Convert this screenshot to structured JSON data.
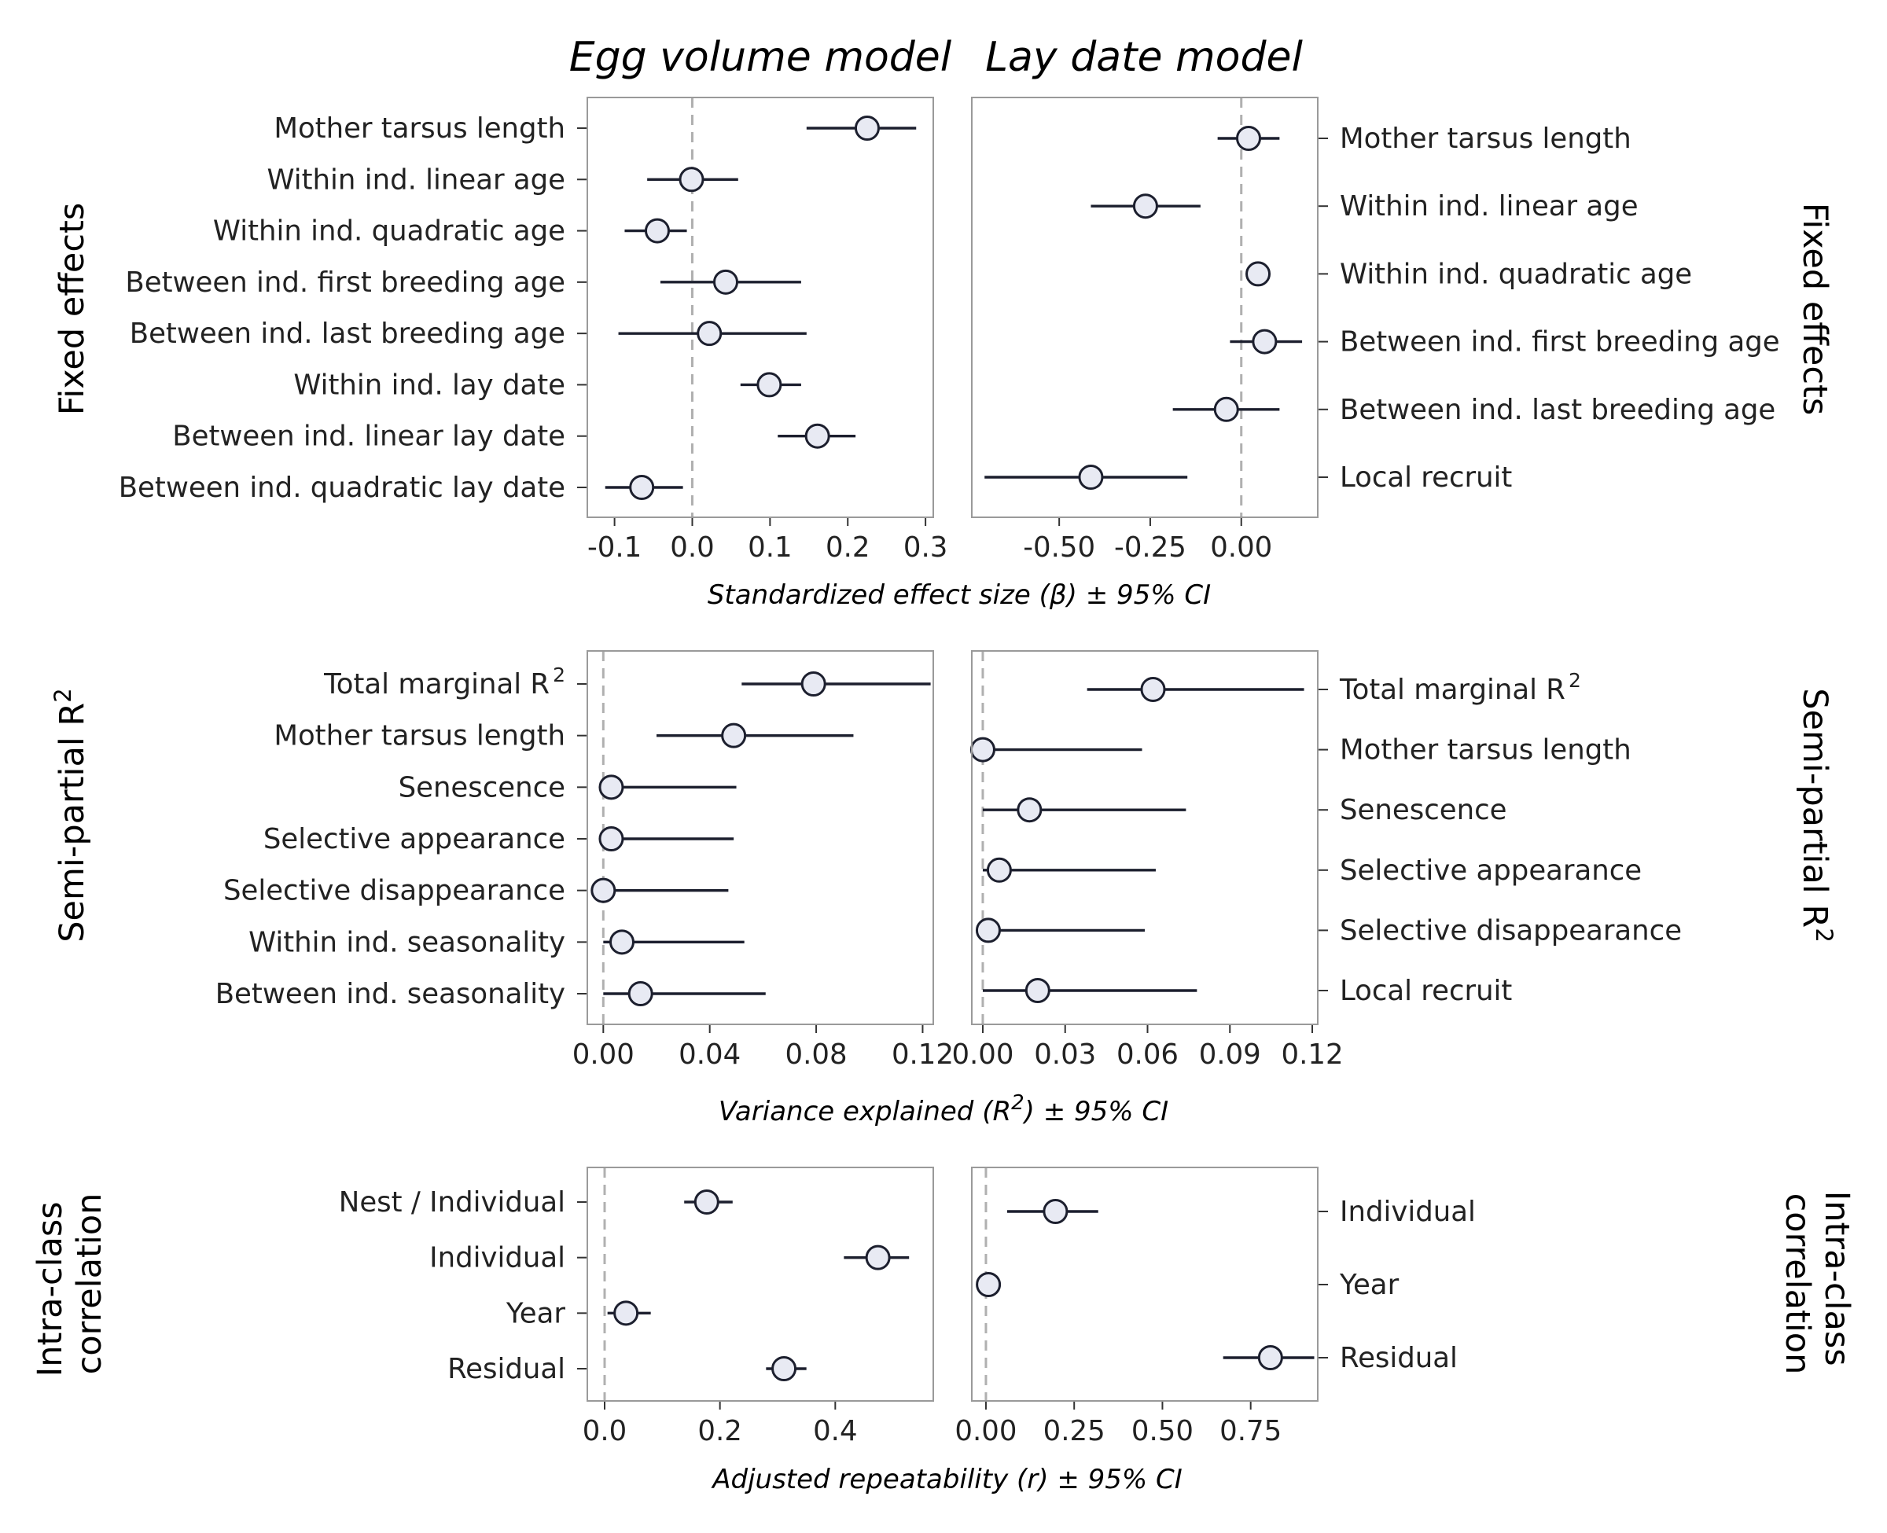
{
  "col_titles": [
    "Egg volume model",
    "Lay date model"
  ],
  "chart_data": [
    {
      "type": "scatter",
      "name": "fixed-effects-egg-volume",
      "row_title": "Fixed effects",
      "column": "Egg volume model",
      "xlabel": "Standardized effect size (β) ± 95% CI",
      "xlim": [
        -0.135,
        0.31
      ],
      "xticks": [
        -0.1,
        0.0,
        0.1,
        0.2,
        0.3
      ],
      "xtick_labels": [
        "-0.1",
        "0.0",
        "0.1",
        "0.2",
        "0.3"
      ],
      "reference_line": 0,
      "labels_side": "left",
      "categories": [
        "Mother tarsus length",
        "Within ind. linear age",
        "Within ind. quadratic age",
        "Between ind. first breeding age",
        "Between ind. last breeding age",
        "Within ind. lay date",
        "Between ind. linear lay date",
        "Between ind. quadratic lay date"
      ],
      "estimates": [
        0.225,
        -0.001,
        -0.045,
        0.043,
        0.022,
        0.099,
        0.161,
        -0.065
      ],
      "lower": [
        0.147,
        -0.058,
        -0.087,
        -0.041,
        -0.095,
        0.062,
        0.11,
        -0.112
      ],
      "upper": [
        0.288,
        0.059,
        -0.007,
        0.14,
        0.147,
        0.14,
        0.21,
        -0.012
      ]
    },
    {
      "type": "scatter",
      "name": "fixed-effects-lay-date",
      "row_title": "Fixed effects",
      "column": "Lay date model",
      "xlabel": "Standardized effect size (β) ± 95% CI",
      "xlim": [
        -0.74,
        0.21
      ],
      "xticks": [
        -0.5,
        -0.25,
        0.0
      ],
      "xtick_labels": [
        "-0.50",
        "-0.25",
        "0.00"
      ],
      "reference_line": 0,
      "labels_side": "right",
      "categories": [
        "Mother tarsus length",
        "Within ind. linear age",
        "Within ind. quadratic age",
        "Between ind. first breeding age",
        "Between ind. last breeding age",
        "Local recruit"
      ],
      "estimates": [
        0.02,
        -0.263,
        0.046,
        0.064,
        -0.041,
        -0.413
      ],
      "lower": [
        -0.065,
        -0.413,
        0.046,
        -0.031,
        -0.188,
        -0.705
      ],
      "upper": [
        0.105,
        -0.112,
        0.046,
        0.167,
        0.105,
        -0.148
      ]
    },
    {
      "type": "scatter",
      "name": "semi-partial-r2-egg-volume",
      "row_title": "Semi-partial R",
      "row_title_sup": "2",
      "column": "Egg volume model",
      "xlabel": "Variance explained (R",
      "xlabel_sup": "2",
      "xlabel_tail": ") ± 95% CI",
      "xlim": [
        -0.006,
        0.124
      ],
      "xticks": [
        0.0,
        0.04,
        0.08,
        0.12
      ],
      "xtick_labels": [
        "0.00",
        "0.04",
        "0.08",
        "0.12"
      ],
      "reference_line": 0,
      "labels_side": "left",
      "categories": [
        "Total marginal R",
        "Mother tarsus length",
        "Senescence",
        "Selective appearance",
        "Selective disappearance",
        "Within ind. seasonality",
        "Between ind. seasonality"
      ],
      "category_sups": [
        "2",
        "",
        "",
        "",
        "",
        "",
        ""
      ],
      "estimates": [
        0.079,
        0.049,
        0.003,
        0.003,
        0.0,
        0.007,
        0.014
      ],
      "lower": [
        0.052,
        0.02,
        0.003,
        0.003,
        0.0,
        0.0,
        0.0
      ],
      "upper": [
        0.123,
        0.094,
        0.05,
        0.049,
        0.047,
        0.053,
        0.061
      ]
    },
    {
      "type": "scatter",
      "name": "semi-partial-r2-lay-date",
      "row_title": "Semi-partial R",
      "row_title_sup": "2",
      "column": "Lay date model",
      "xlabel": "Variance explained (R",
      "xlabel_sup": "2",
      "xlabel_tail": ") ± 95% CI",
      "xlim": [
        -0.004,
        0.122
      ],
      "xticks": [
        0.0,
        0.03,
        0.06,
        0.09,
        0.12
      ],
      "xtick_labels": [
        "0.00",
        "0.03",
        "0.06",
        "0.09",
        "0.12"
      ],
      "reference_line": 0,
      "labels_side": "right",
      "categories": [
        "Total marginal R",
        "Mother tarsus length",
        "Senescence",
        "Selective appearance",
        "Selective disappearance",
        "Local recruit"
      ],
      "category_sups": [
        "2",
        "",
        "",
        "",
        "",
        ""
      ],
      "estimates": [
        0.062,
        0.0,
        0.017,
        0.006,
        0.002,
        0.02
      ],
      "lower": [
        0.038,
        0.0,
        0.0,
        0.0,
        0.0,
        0.0
      ],
      "upper": [
        0.117,
        0.058,
        0.074,
        0.063,
        0.059,
        0.078
      ]
    },
    {
      "type": "scatter",
      "name": "intra-class-correlation-egg-volume",
      "row_title_lines": [
        "Intra-class",
        "correlation"
      ],
      "column": "Egg volume model",
      "xlabel": "Adjusted repeatability (r) ± 95% CI",
      "xlim": [
        -0.03,
        0.57
      ],
      "xticks": [
        0.0,
        0.2,
        0.4
      ],
      "xtick_labels": [
        "0.0",
        "0.2",
        "0.4"
      ],
      "reference_line": 0,
      "labels_side": "left",
      "categories": [
        "Nest / Individual",
        "Individual",
        "Year",
        "Residual"
      ],
      "estimates": [
        0.177,
        0.474,
        0.037,
        0.311
      ],
      "lower": [
        0.138,
        0.415,
        0.005,
        0.28
      ],
      "upper": [
        0.222,
        0.528,
        0.08,
        0.35
      ]
    },
    {
      "type": "scatter",
      "name": "intra-class-correlation-lay-date",
      "row_title_lines": [
        "Intra-class",
        "correlation"
      ],
      "column": "Lay date model",
      "xlabel": "Adjusted repeatability (r) ± 95% CI",
      "xlim": [
        -0.04,
        0.94
      ],
      "xticks": [
        0.0,
        0.25,
        0.5,
        0.75
      ],
      "xtick_labels": [
        "0.00",
        "0.25",
        "0.50",
        "0.75"
      ],
      "reference_line": 0,
      "labels_side": "right",
      "categories": [
        "Individual",
        "Year",
        "Residual"
      ],
      "estimates": [
        0.197,
        0.007,
        0.806
      ],
      "lower": [
        0.06,
        0.007,
        0.672
      ],
      "upper": [
        0.318,
        0.007,
        0.93
      ]
    }
  ]
}
